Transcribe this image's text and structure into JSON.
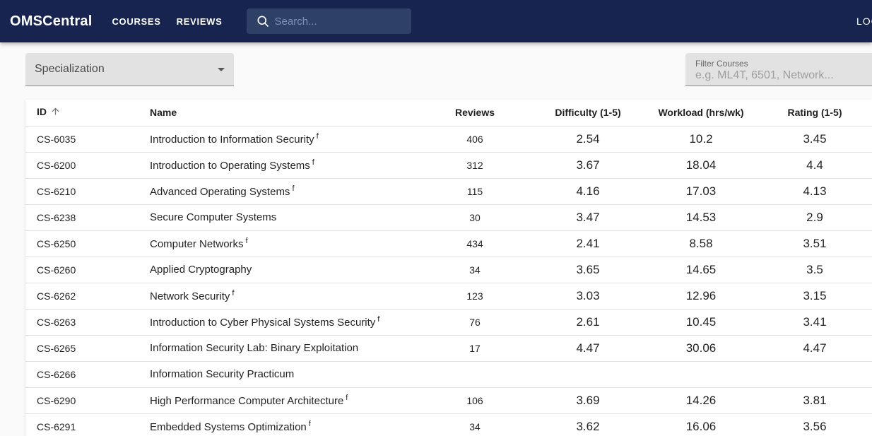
{
  "colors": {
    "navbar_bg": "#172450",
    "search_bg": "#2e4066"
  },
  "navbar": {
    "brand": "OMSCentral",
    "links": [
      {
        "label": "COURSES"
      },
      {
        "label": "REVIEWS"
      }
    ],
    "search": {
      "placeholder": "Search...",
      "icon": "magnifier"
    },
    "login_label": "LOGIN"
  },
  "filters": {
    "specialization": {
      "label": "Specialization",
      "icon": "caret-down"
    },
    "course_filter": {
      "label": "Filter Courses",
      "placeholder": "e.g. ML4T, 6501, Network..."
    }
  },
  "table": {
    "columns": [
      "ID",
      "Name",
      "Reviews",
      "Difficulty (1-5)",
      "Workload (hrs/wk)",
      "Rating (1-5)"
    ],
    "sort": {
      "column": "ID",
      "direction": "ascending",
      "icon": "arrow-up"
    },
    "footnote_marker": "f",
    "rows": [
      {
        "id": "CS-6035",
        "name": "Introduction to Information Security",
        "footnote": "f",
        "reviews": "406",
        "difficulty": "2.54",
        "workload": "10.2",
        "rating": "3.45"
      },
      {
        "id": "CS-6200",
        "name": "Introduction to Operating Systems",
        "footnote": "f",
        "reviews": "312",
        "difficulty": "3.67",
        "workload": "18.04",
        "rating": "4.4"
      },
      {
        "id": "CS-6210",
        "name": "Advanced Operating Systems",
        "footnote": "f",
        "reviews": "115",
        "difficulty": "4.16",
        "workload": "17.03",
        "rating": "4.13"
      },
      {
        "id": "CS-6238",
        "name": "Secure Computer Systems",
        "footnote": "",
        "reviews": "30",
        "difficulty": "3.47",
        "workload": "14.53",
        "rating": "2.9"
      },
      {
        "id": "CS-6250",
        "name": "Computer Networks",
        "footnote": "f",
        "reviews": "434",
        "difficulty": "2.41",
        "workload": "8.58",
        "rating": "3.51"
      },
      {
        "id": "CS-6260",
        "name": "Applied Cryptography",
        "footnote": "",
        "reviews": "34",
        "difficulty": "3.65",
        "workload": "14.65",
        "rating": "3.5"
      },
      {
        "id": "CS-6262",
        "name": "Network Security",
        "footnote": "f",
        "reviews": "123",
        "difficulty": "3.03",
        "workload": "12.96",
        "rating": "3.15"
      },
      {
        "id": "CS-6263",
        "name": "Introduction to Cyber Physical Systems Security",
        "footnote": "f",
        "reviews": "76",
        "difficulty": "2.61",
        "workload": "10.45",
        "rating": "3.41"
      },
      {
        "id": "CS-6265",
        "name": "Information Security Lab: Binary Exploitation",
        "footnote": "",
        "reviews": "17",
        "difficulty": "4.47",
        "workload": "30.06",
        "rating": "4.47"
      },
      {
        "id": "CS-6266",
        "name": "Information Security Practicum",
        "footnote": "",
        "reviews": "",
        "difficulty": "",
        "workload": "",
        "rating": ""
      },
      {
        "id": "CS-6290",
        "name": "High Performance Computer Architecture",
        "footnote": "f",
        "reviews": "106",
        "difficulty": "3.69",
        "workload": "14.26",
        "rating": "3.81"
      },
      {
        "id": "CS-6291",
        "name": "Embedded Systems Optimization",
        "footnote": "f",
        "reviews": "34",
        "difficulty": "3.62",
        "workload": "16.06",
        "rating": "3.56"
      }
    ]
  }
}
